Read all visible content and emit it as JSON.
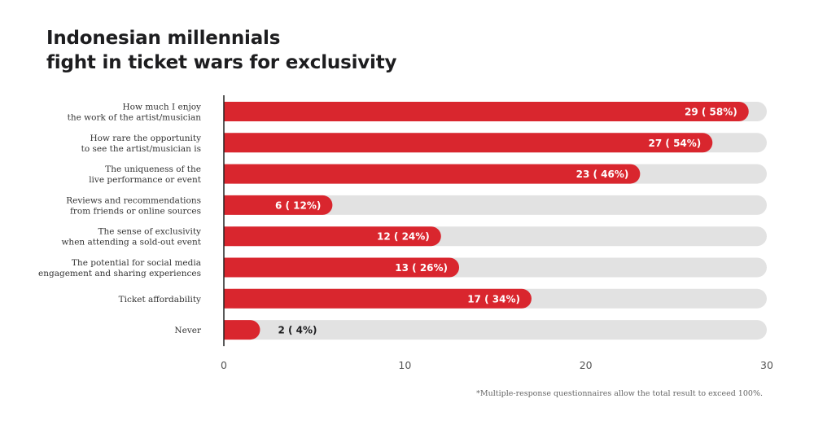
{
  "chart_data": {
    "type": "bar",
    "orientation": "horizontal",
    "title": [
      "Indonesian millennials",
      "fight in ticket wars for exclusivity"
    ],
    "categories": [
      [
        "How much I enjoy",
        "the work of the artist/musician"
      ],
      [
        "How rare the opportunity",
        "to see the artist/musician is"
      ],
      [
        "The uniqueness of the",
        "live performance or event"
      ],
      [
        "Reviews and recommendations",
        "from friends or online sources"
      ],
      [
        "The sense of exclusivity",
        "when attending a sold-out event"
      ],
      [
        "The potential for social media",
        "engagement and sharing experiences"
      ],
      [
        "Ticket affordability"
      ],
      [
        "Never"
      ]
    ],
    "values": [
      29,
      27,
      23,
      6,
      12,
      13,
      17,
      2
    ],
    "data_labels": [
      "29 ( 58%)",
      "27 ( 54%)",
      "23 ( 46%)",
      "6 ( 12%)",
      "12 ( 24%)",
      "13 ( 26%)",
      "17 ( 34%)",
      "2 ( 4%)"
    ],
    "xlim": [
      0,
      30
    ],
    "xticks": [
      0,
      10,
      20,
      30
    ],
    "bar_color": "#d9262e",
    "track_color": "#e2e2e2",
    "grid": false,
    "legend": "none"
  },
  "footnote": "*Multiple-response questionnaires allow the total result to exceed 100%."
}
